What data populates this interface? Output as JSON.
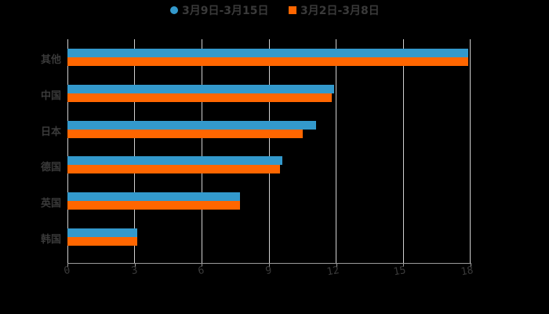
{
  "legend": [
    {
      "label": "3月9日-3月15日",
      "color": "#3399cc",
      "shape": "circle"
    },
    {
      "label": "3月2日-3月8日",
      "color": "#ff6600",
      "shape": "square"
    }
  ],
  "chart_data": {
    "type": "bar",
    "orientation": "horizontal",
    "title": "",
    "xlabel": "",
    "ylabel": "",
    "categories": [
      "其他",
      "中国",
      "日本",
      "德国",
      "英国",
      "韩国"
    ],
    "series": [
      {
        "name": "3月9日-3月15日",
        "color": "#3399cc",
        "values": [
          17.9,
          11.9,
          11.1,
          9.6,
          7.7,
          3.1
        ]
      },
      {
        "name": "3月2日-3月8日",
        "color": "#ff6600",
        "values": [
          17.9,
          11.8,
          10.5,
          9.5,
          7.7,
          3.1
        ]
      }
    ],
    "xlim": [
      0,
      18
    ],
    "xticks": [
      "0",
      "3",
      "6",
      "9",
      "12",
      "15",
      "18"
    ],
    "grid": true,
    "legend_position": "top"
  }
}
